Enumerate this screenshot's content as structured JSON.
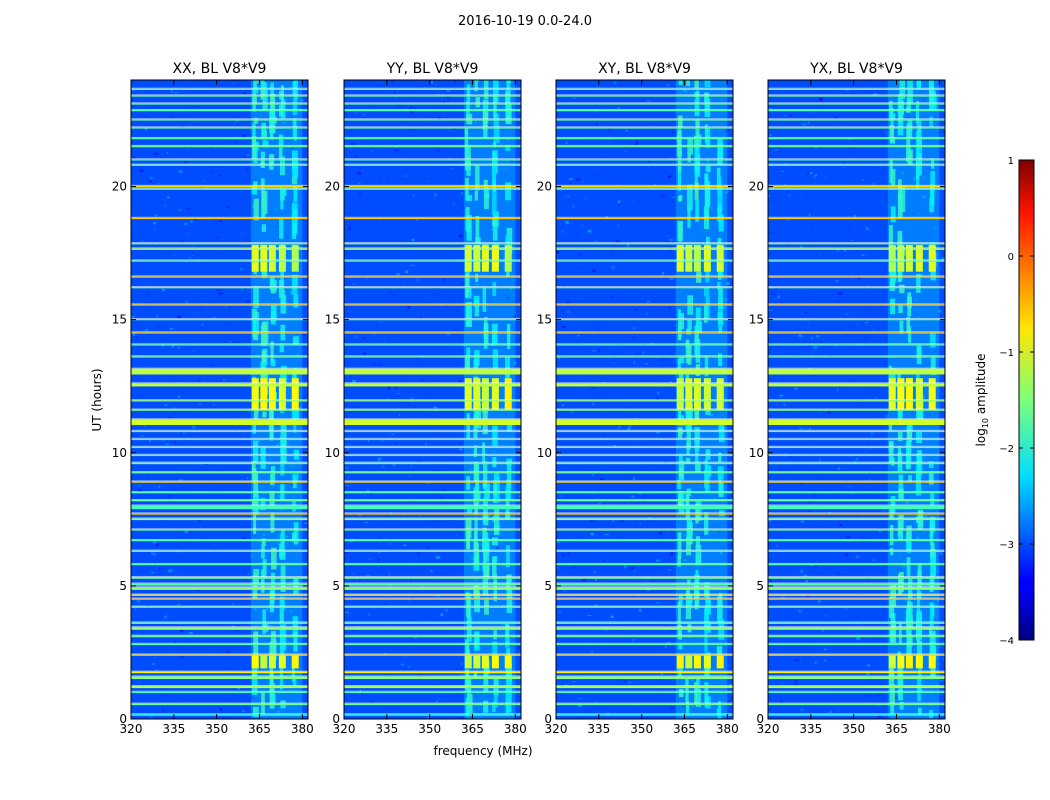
{
  "chart_data": {
    "type": "heatmap",
    "suptitle": "2016-10-19 0.0-24.0",
    "xlabel": "frequency (MHz)",
    "ylabel": "UT (hours)",
    "xlim": [
      320,
      382
    ],
    "ylim": [
      0,
      24
    ],
    "xticks": [
      "320",
      "335",
      "350",
      "365",
      "380"
    ],
    "xtick_values": [
      320,
      335,
      350,
      365,
      380
    ],
    "yticks": [
      "0",
      "5",
      "10",
      "15",
      "20"
    ],
    "ytick_values": [
      0,
      5,
      10,
      15,
      20
    ],
    "panels": [
      {
        "title": "XX, BL V8*V9"
      },
      {
        "title": "YY, BL V8*V9"
      },
      {
        "title": "XY, BL V8*V9"
      },
      {
        "title": "YX, BL V8*V9"
      }
    ],
    "colorbar": {
      "label_prefix": "log",
      "label_sub": "10",
      "label_suffix": " amplitude",
      "ticks": [
        "1",
        "0",
        "−1",
        "−2",
        "−3",
        "−4"
      ],
      "tick_values": [
        1,
        0,
        -1,
        -2,
        -3,
        -4
      ],
      "vmin": -4,
      "vmax": 1,
      "colormap": "jet"
    },
    "signal_band_mhz": [
      362,
      380
    ],
    "background_level": -3.0,
    "rfi_hours": [
      {
        "t": 0.15,
        "w": 0.06,
        "v": -2.0
      },
      {
        "t": 0.55,
        "w": 0.06,
        "v": -1.6
      },
      {
        "t": 1.0,
        "w": 0.05,
        "v": -1.8
      },
      {
        "t": 1.2,
        "w": 0.08,
        "v": -1.3
      },
      {
        "t": 1.55,
        "w": 0.1,
        "v": -1.5
      },
      {
        "t": 1.75,
        "w": 0.06,
        "v": -0.8
      },
      {
        "t": 2.4,
        "w": 0.05,
        "v": -0.7
      },
      {
        "t": 2.8,
        "w": 0.05,
        "v": -1.7
      },
      {
        "t": 3.1,
        "w": 0.06,
        "v": -1.6
      },
      {
        "t": 3.4,
        "w": 0.1,
        "v": -1.4
      },
      {
        "t": 3.6,
        "w": 0.06,
        "v": -1.7
      },
      {
        "t": 4.2,
        "w": 0.05,
        "v": -1.6
      },
      {
        "t": 4.5,
        "w": 0.05,
        "v": -0.5
      },
      {
        "t": 4.65,
        "w": 0.05,
        "v": -0.8
      },
      {
        "t": 4.9,
        "w": 0.1,
        "v": -1.4
      },
      {
        "t": 5.05,
        "w": 0.08,
        "v": -1.7
      },
      {
        "t": 5.3,
        "w": 0.07,
        "v": -1.6
      },
      {
        "t": 5.8,
        "w": 0.05,
        "v": -1.7
      },
      {
        "t": 6.3,
        "w": 0.05,
        "v": -1.6
      },
      {
        "t": 6.7,
        "w": 0.05,
        "v": -1.7
      },
      {
        "t": 7.1,
        "w": 0.05,
        "v": -1.6
      },
      {
        "t": 7.5,
        "w": 0.06,
        "v": -1.5
      },
      {
        "t": 7.7,
        "w": 0.05,
        "v": -0.6
      },
      {
        "t": 7.95,
        "w": 0.14,
        "v": -1.8
      },
      {
        "t": 8.2,
        "w": 0.05,
        "v": -1.6
      },
      {
        "t": 8.5,
        "w": 0.05,
        "v": -1.7
      },
      {
        "t": 8.9,
        "w": 0.05,
        "v": -0.7
      },
      {
        "t": 9.25,
        "w": 0.05,
        "v": -1.6
      },
      {
        "t": 9.6,
        "w": 0.06,
        "v": -1.6
      },
      {
        "t": 9.9,
        "w": 0.05,
        "v": -1.7
      },
      {
        "t": 10.2,
        "w": 0.05,
        "v": -1.6
      },
      {
        "t": 10.5,
        "w": 0.05,
        "v": -1.7
      },
      {
        "t": 10.8,
        "w": 0.05,
        "v": -1.6
      },
      {
        "t": 11.15,
        "w": 0.22,
        "v": -1.1
      },
      {
        "t": 11.6,
        "w": 0.05,
        "v": -1.5
      },
      {
        "t": 11.95,
        "w": 0.05,
        "v": -1.4
      },
      {
        "t": 12.55,
        "w": 0.12,
        "v": -1.2
      },
      {
        "t": 13.05,
        "w": 0.22,
        "v": -1.2
      },
      {
        "t": 13.6,
        "w": 0.05,
        "v": -1.6
      },
      {
        "t": 14.05,
        "w": 0.05,
        "v": -1.7
      },
      {
        "t": 14.5,
        "w": 0.05,
        "v": -0.6
      },
      {
        "t": 15.0,
        "w": 0.05,
        "v": -1.7
      },
      {
        "t": 15.55,
        "w": 0.05,
        "v": -0.6
      },
      {
        "t": 16.2,
        "w": 0.05,
        "v": -1.6
      },
      {
        "t": 16.6,
        "w": 0.05,
        "v": -0.6
      },
      {
        "t": 17.2,
        "w": 0.05,
        "v": -1.7
      },
      {
        "t": 17.65,
        "w": 0.06,
        "v": -1.3
      },
      {
        "t": 17.85,
        "w": 0.05,
        "v": -1.5
      },
      {
        "t": 18.8,
        "w": 0.05,
        "v": -0.6
      },
      {
        "t": 19.9,
        "w": 0.05,
        "v": -1.6
      },
      {
        "t": 20.0,
        "w": 0.05,
        "v": -0.7
      },
      {
        "t": 20.8,
        "w": 0.05,
        "v": -1.6
      },
      {
        "t": 21.0,
        "w": 0.05,
        "v": -1.7
      },
      {
        "t": 21.5,
        "w": 0.05,
        "v": -1.6
      },
      {
        "t": 21.8,
        "w": 0.05,
        "v": -1.7
      },
      {
        "t": 22.2,
        "w": 0.05,
        "v": -1.6
      },
      {
        "t": 22.5,
        "w": 0.05,
        "v": -1.6
      },
      {
        "t": 22.85,
        "w": 0.05,
        "v": -1.7
      },
      {
        "t": 23.1,
        "w": 0.05,
        "v": -1.6
      },
      {
        "t": 23.4,
        "w": 0.05,
        "v": -1.6
      },
      {
        "t": 23.65,
        "w": 0.05,
        "v": -1.7
      }
    ],
    "bright_blocks": [
      {
        "t0": 1.9,
        "t1": 2.4,
        "v": -0.8
      },
      {
        "t0": 11.6,
        "t1": 12.8,
        "v": -0.8
      },
      {
        "t0": 16.8,
        "t1": 17.8,
        "v": -0.9
      }
    ]
  }
}
